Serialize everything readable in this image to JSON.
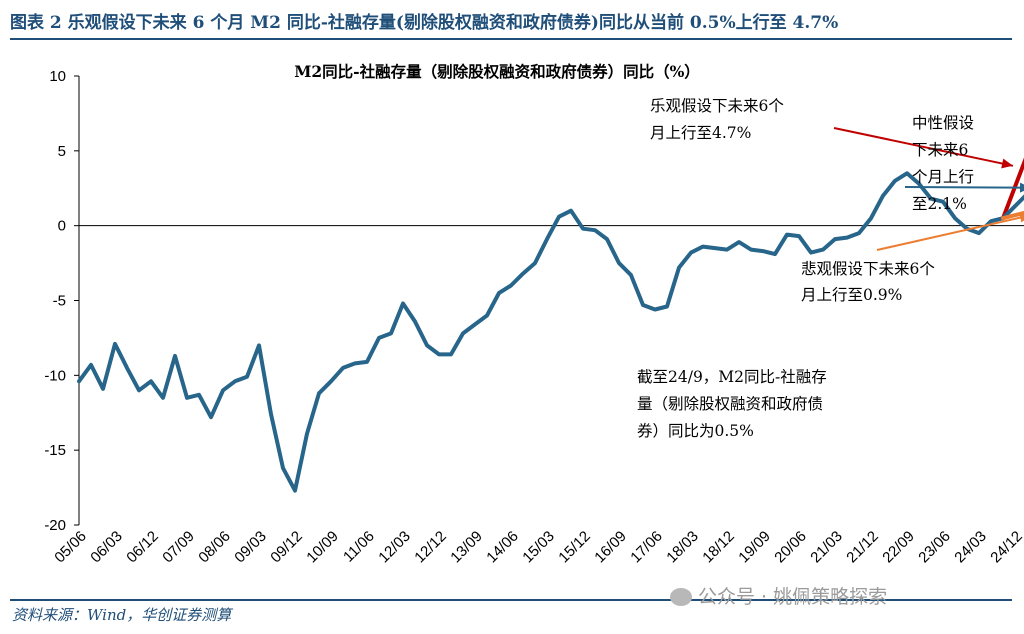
{
  "figure": {
    "title": "图表 2   乐观假设下未来 6 个月  M2  同比-社融存量(剔除股权融资和政府债券)同比从当前  0.5%上行至  4.7%",
    "source": "资料来源：Wind，华创证券测算",
    "watermark": "公众号 · 姚佩策略探索"
  },
  "chart_data": {
    "type": "line",
    "title": "M2同比-社融存量（剔除股权融资和政府债券）同比（%）",
    "xlabel": "",
    "ylabel": "",
    "ylim": [
      -20,
      10
    ],
    "yticks": [
      10,
      5,
      0,
      -5,
      -10,
      -15,
      -20
    ],
    "xticks": [
      "05/06",
      "06/03",
      "06/12",
      "07/09",
      "08/06",
      "09/03",
      "09/12",
      "10/09",
      "11/06",
      "12/03",
      "12/12",
      "13/09",
      "14/06",
      "15/03",
      "15/12",
      "16/09",
      "17/06",
      "18/03",
      "18/12",
      "19/09",
      "20/06",
      "21/03",
      "21/12",
      "22/09",
      "23/06",
      "24/03",
      "24/12"
    ],
    "grid": false,
    "zero_line": true,
    "series": [
      {
        "name": "M2同比-社融存量（剔除股权融资和政府债券）同比",
        "color": "#27658a",
        "x": [
          "2005-06",
          "2005-09",
          "2005-12",
          "2006-03",
          "2006-06",
          "2006-09",
          "2006-12",
          "2007-03",
          "2007-06",
          "2007-09",
          "2007-12",
          "2008-03",
          "2008-06",
          "2008-09",
          "2008-12",
          "2009-03",
          "2009-06",
          "2009-09",
          "2009-12",
          "2010-03",
          "2010-06",
          "2010-09",
          "2010-12",
          "2011-03",
          "2011-06",
          "2011-09",
          "2011-12",
          "2012-03",
          "2012-06",
          "2012-09",
          "2012-12",
          "2013-03",
          "2013-06",
          "2013-09",
          "2013-12",
          "2014-03",
          "2014-06",
          "2014-09",
          "2014-12",
          "2015-03",
          "2015-06",
          "2015-09",
          "2015-12",
          "2016-03",
          "2016-06",
          "2016-09",
          "2016-12",
          "2017-03",
          "2017-06",
          "2017-09",
          "2017-12",
          "2018-03",
          "2018-06",
          "2018-09",
          "2018-12",
          "2019-03",
          "2019-06",
          "2019-09",
          "2019-12",
          "2020-03",
          "2020-06",
          "2020-09",
          "2020-12",
          "2021-03",
          "2021-06",
          "2021-09",
          "2021-12",
          "2022-03",
          "2022-06",
          "2022-09",
          "2022-12",
          "2023-03",
          "2023-06",
          "2023-09",
          "2023-12",
          "2024-03",
          "2024-06",
          "2024-09"
        ],
        "values": [
          -10.4,
          -9.3,
          -10.9,
          -7.9,
          -9.5,
          -11.0,
          -10.4,
          -11.5,
          -8.7,
          -11.5,
          -11.3,
          -12.8,
          -11.0,
          -10.4,
          -10.1,
          -8.0,
          -12.6,
          -16.2,
          -17.7,
          -13.9,
          -11.2,
          -10.4,
          -9.5,
          -9.2,
          -9.1,
          -7.5,
          -7.2,
          -5.2,
          -6.4,
          -8.0,
          -8.6,
          -8.6,
          -7.2,
          -6.6,
          -6.0,
          -4.5,
          -4.0,
          -3.2,
          -2.5,
          -0.9,
          0.6,
          1.0,
          -0.2,
          -0.3,
          -0.9,
          -2.5,
          -3.3,
          -5.3,
          -5.6,
          -5.4,
          -2.8,
          -1.8,
          -1.4,
          -1.5,
          -1.6,
          -1.1,
          -1.6,
          -1.7,
          -1.9,
          -0.6,
          -0.7,
          -1.8,
          -1.6,
          -0.9,
          -0.8,
          -0.5,
          0.5,
          2.0,
          3.0,
          3.5,
          2.8,
          1.8,
          1.6,
          0.5,
          -0.2,
          -0.5,
          0.3,
          0.5
        ]
      },
      {
        "name": "乐观",
        "color": "#c00000",
        "x": [
          "2024-09",
          "2025-03"
        ],
        "values": [
          0.5,
          4.7
        ]
      },
      {
        "name": "中性",
        "color": "#27658a",
        "x": [
          "2024-09",
          "2025-03"
        ],
        "values": [
          0.5,
          2.1
        ]
      },
      {
        "name": "悲观",
        "color": "#ed7d31",
        "x": [
          "2024-09",
          "2025-03"
        ],
        "values": [
          0.5,
          0.9
        ]
      }
    ],
    "annotations": {
      "optimistic": [
        "乐观假设下未来6个",
        "月上行至4.7%"
      ],
      "neutral": [
        "中性假设",
        "下未来6",
        "个月上行",
        "至2.1%"
      ],
      "pessimistic": [
        "悲观假设下未来6个",
        "月上行至0.9%"
      ],
      "note": [
        "截至24/9，M2同比-社融存",
        "量（剔除股权融资和政府债",
        "券）同比为0.5%"
      ]
    }
  }
}
